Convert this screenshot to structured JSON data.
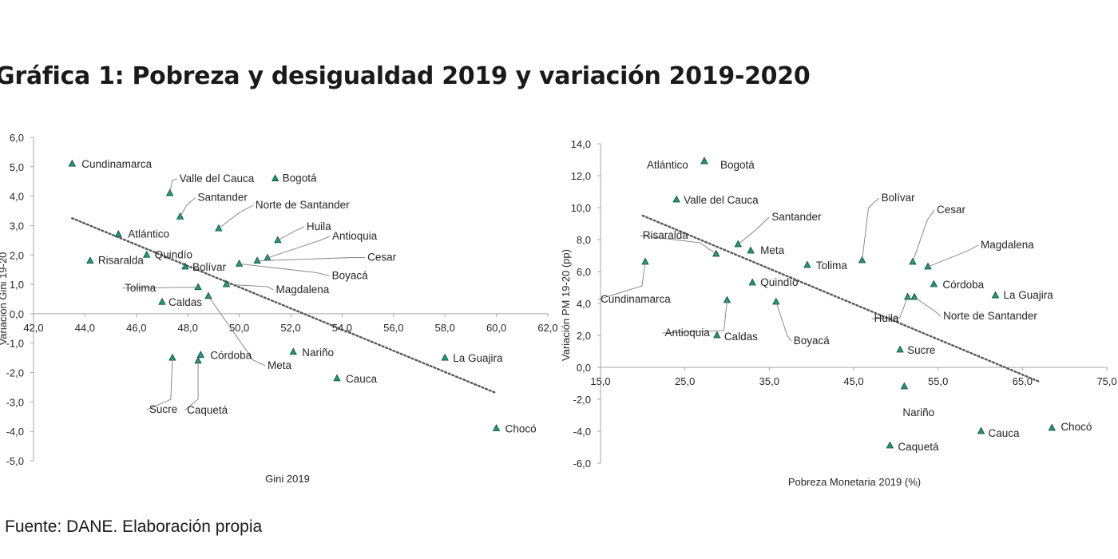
{
  "title": "Gráfica 1: Pobreza y desigualdad 2019 y variación 2019-2020",
  "source": "Fuente: DANE. Elaboración propia",
  "colors": {
    "marker_fill": "#1f9a74",
    "marker_stroke": "#0b4a38",
    "axis": "#a6a6a6",
    "trend": "#595959"
  },
  "chart_data": [
    {
      "type": "scatter",
      "xlabel": "Gini 2019",
      "ylabel": "Variación Gini 19-20",
      "xlim": [
        42,
        62
      ],
      "ylim": [
        -5,
        6
      ],
      "xticks": [
        "42,0",
        "44,0",
        "46,0",
        "48,0",
        "50,0",
        "52,0",
        "54,0",
        "56,0",
        "58,0",
        "60,0",
        "62,0"
      ],
      "yticks": [
        "6,0",
        "5,0",
        "4,0",
        "3,0",
        "2,0",
        "1,0",
        "0,0",
        "-1,0",
        "-2,0",
        "-3,0",
        "-4,0",
        "-5,0"
      ],
      "trendline": {
        "style": "dotted",
        "x": [
          43.5,
          60.0
        ],
        "y": [
          3.25,
          -2.7
        ]
      },
      "points": [
        {
          "name": "Cundinamarca",
          "x": 43.5,
          "y": 5.1
        },
        {
          "name": "Valle del Cauca",
          "x": 47.3,
          "y": 4.1
        },
        {
          "name": "Bogotá",
          "x": 51.4,
          "y": 4.6
        },
        {
          "name": "Santander",
          "x": 47.7,
          "y": 3.3
        },
        {
          "name": "Norte de Santander",
          "x": 49.2,
          "y": 2.9
        },
        {
          "name": "Huila",
          "x": 51.5,
          "y": 2.5
        },
        {
          "name": "Atlántico",
          "x": 45.3,
          "y": 2.7
        },
        {
          "name": "Antioquia",
          "x": 51.1,
          "y": 1.9
        },
        {
          "name": "Cesar",
          "x": 50.7,
          "y": 1.8
        },
        {
          "name": "Risaralda",
          "x": 44.2,
          "y": 1.8
        },
        {
          "name": "Quindío",
          "x": 46.4,
          "y": 2.0
        },
        {
          "name": "Bolívar",
          "x": 47.9,
          "y": 1.6
        },
        {
          "name": "Boyacá",
          "x": 50.0,
          "y": 1.7
        },
        {
          "name": "Tolima",
          "x": 48.4,
          "y": 0.9
        },
        {
          "name": "Magdalena",
          "x": 49.5,
          "y": 1.0
        },
        {
          "name": "Caldas",
          "x": 47.0,
          "y": 0.4
        },
        {
          "name": "Meta",
          "x": 48.8,
          "y": 0.6
        },
        {
          "name": "Nariño",
          "x": 52.1,
          "y": -1.3
        },
        {
          "name": "Córdoba",
          "x": 48.5,
          "y": -1.4
        },
        {
          "name": "La Guajira",
          "x": 58.0,
          "y": -1.5
        },
        {
          "name": "Sucre",
          "x": 47.4,
          "y": -1.5
        },
        {
          "name": "Caquetá",
          "x": 48.4,
          "y": -1.6
        },
        {
          "name": "Cauca",
          "x": 53.8,
          "y": -2.2
        },
        {
          "name": "Chocó",
          "x": 60.0,
          "y": -3.9
        }
      ]
    },
    {
      "type": "scatter",
      "xlabel": "Pobreza Monetaria  2019 (%)",
      "ylabel": "Variación PM 19-20 (pp)",
      "xlim": [
        15,
        75
      ],
      "ylim": [
        -6,
        14
      ],
      "xticks": [
        "15,0",
        "25,0",
        "35,0",
        "45,0",
        "55,0",
        "65,0",
        "75,0"
      ],
      "yticks": [
        "14,0",
        "12,0",
        "10,0",
        "8,0",
        "6,0",
        "4,0",
        "2,0",
        "0,0",
        "-2,0",
        "-4,0",
        "-6,0"
      ],
      "trendline": {
        "style": "dotted",
        "x": [
          20.0,
          67.0
        ],
        "y": [
          9.5,
          -0.9
        ]
      },
      "points": [
        {
          "name": "Atlántico",
          "x": 27.3,
          "y": 12.9
        },
        {
          "name": "Bogotá",
          "x": 27.3,
          "y": 12.9
        },
        {
          "name": "Valle del Cauca",
          "x": 24.0,
          "y": 10.5
        },
        {
          "name": "Santander",
          "x": 31.3,
          "y": 7.7
        },
        {
          "name": "Risaralda",
          "x": 28.7,
          "y": 7.1
        },
        {
          "name": "Meta",
          "x": 32.8,
          "y": 7.3
        },
        {
          "name": "Tolima",
          "x": 39.5,
          "y": 6.4
        },
        {
          "name": "Bolívar",
          "x": 46.0,
          "y": 6.7
        },
        {
          "name": "Cesar",
          "x": 52.0,
          "y": 6.6
        },
        {
          "name": "Magdalena",
          "x": 53.8,
          "y": 6.3
        },
        {
          "name": "Cundinamarca",
          "x": 20.3,
          "y": 6.6
        },
        {
          "name": "Quindío",
          "x": 33.0,
          "y": 5.3
        },
        {
          "name": "Córdoba",
          "x": 54.5,
          "y": 5.2
        },
        {
          "name": "La Guajira",
          "x": 61.8,
          "y": 4.5
        },
        {
          "name": "Huila",
          "x": 51.4,
          "y": 4.4
        },
        {
          "name": "Norte de Santander",
          "x": 52.2,
          "y": 4.4
        },
        {
          "name": "Antioquia",
          "x": 30.0,
          "y": 4.2
        },
        {
          "name": "Boyacá",
          "x": 35.8,
          "y": 4.1
        },
        {
          "name": "Caldas",
          "x": 28.8,
          "y": 2.0
        },
        {
          "name": "Sucre",
          "x": 50.5,
          "y": 1.1
        },
        {
          "name": "Nariño",
          "x": 51.0,
          "y": -1.2
        },
        {
          "name": "Caquetá",
          "x": 49.3,
          "y": -4.9
        },
        {
          "name": "Cauca",
          "x": 60.1,
          "y": -4.0
        },
        {
          "name": "Chocó",
          "x": 68.5,
          "y": -3.8
        }
      ]
    }
  ]
}
